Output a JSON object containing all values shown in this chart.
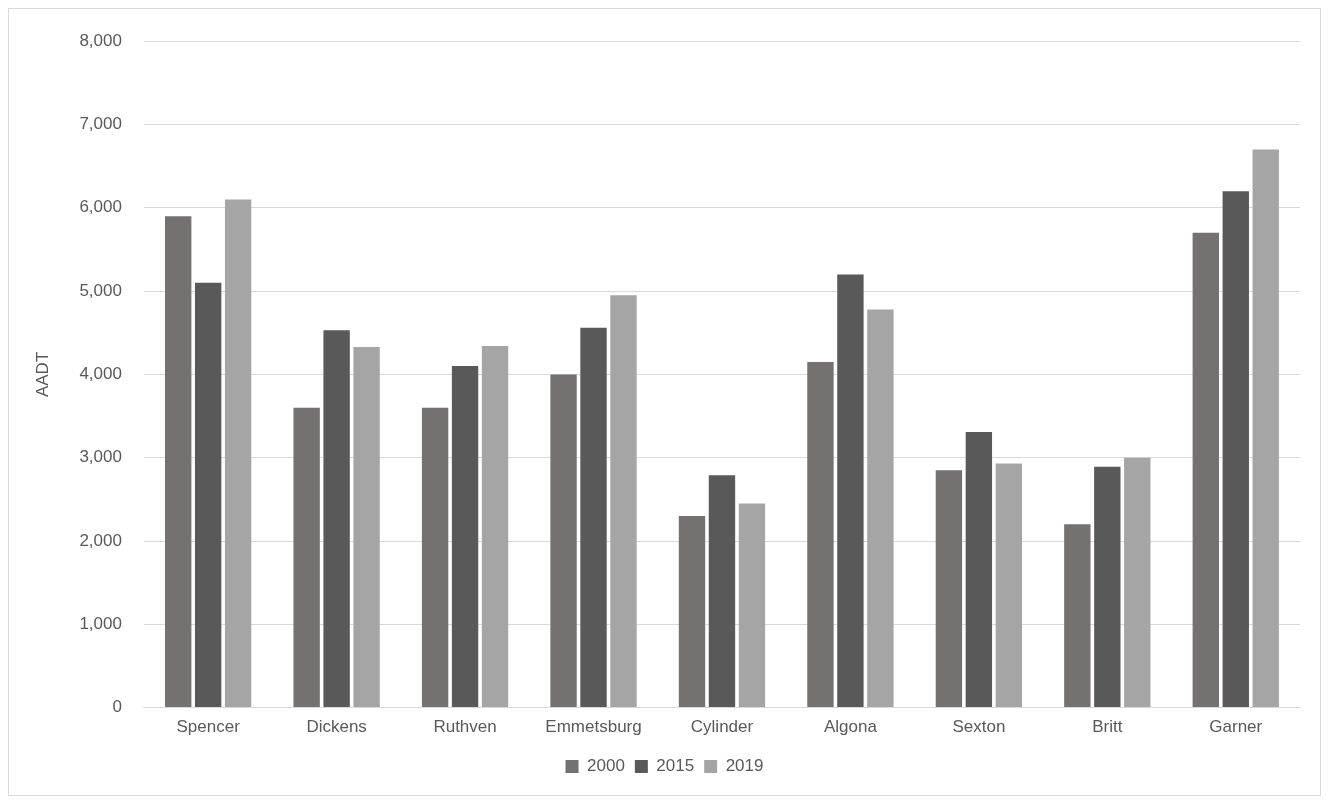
{
  "chart_data": {
    "type": "bar",
    "ylabel": "AADT",
    "categories": [
      "Spencer",
      "Dickens",
      "Ruthven",
      "Emmetsburg",
      "Cylinder",
      "Algona",
      "Sexton",
      "Britt",
      "Garner"
    ],
    "series": [
      {
        "name": "2000",
        "color": "#767171",
        "values": [
          5900,
          3600,
          3600,
          4000,
          2300,
          4150,
          2850,
          2200,
          5700
        ]
      },
      {
        "name": "2015",
        "color": "#595959",
        "values": [
          5100,
          4530,
          4100,
          4560,
          2790,
          5200,
          3310,
          2890,
          6200
        ]
      },
      {
        "name": "2019",
        "color": "#a5a5a5",
        "values": [
          6100,
          4330,
          4340,
          4950,
          2450,
          4780,
          2930,
          3000,
          6700
        ]
      }
    ],
    "ylim": [
      0,
      8000
    ],
    "yticks": [
      {
        "value": 0,
        "label": "0"
      },
      {
        "value": 1000,
        "label": "1,000"
      },
      {
        "value": 2000,
        "label": "2,000"
      },
      {
        "value": 3000,
        "label": "3,000"
      },
      {
        "value": 4000,
        "label": "4,000"
      },
      {
        "value": 5000,
        "label": "5,000"
      },
      {
        "value": 6000,
        "label": "6,000"
      },
      {
        "value": 7000,
        "label": "7,000"
      },
      {
        "value": 8000,
        "label": "8,000"
      }
    ],
    "grid": "y",
    "legend": "bottom"
  }
}
